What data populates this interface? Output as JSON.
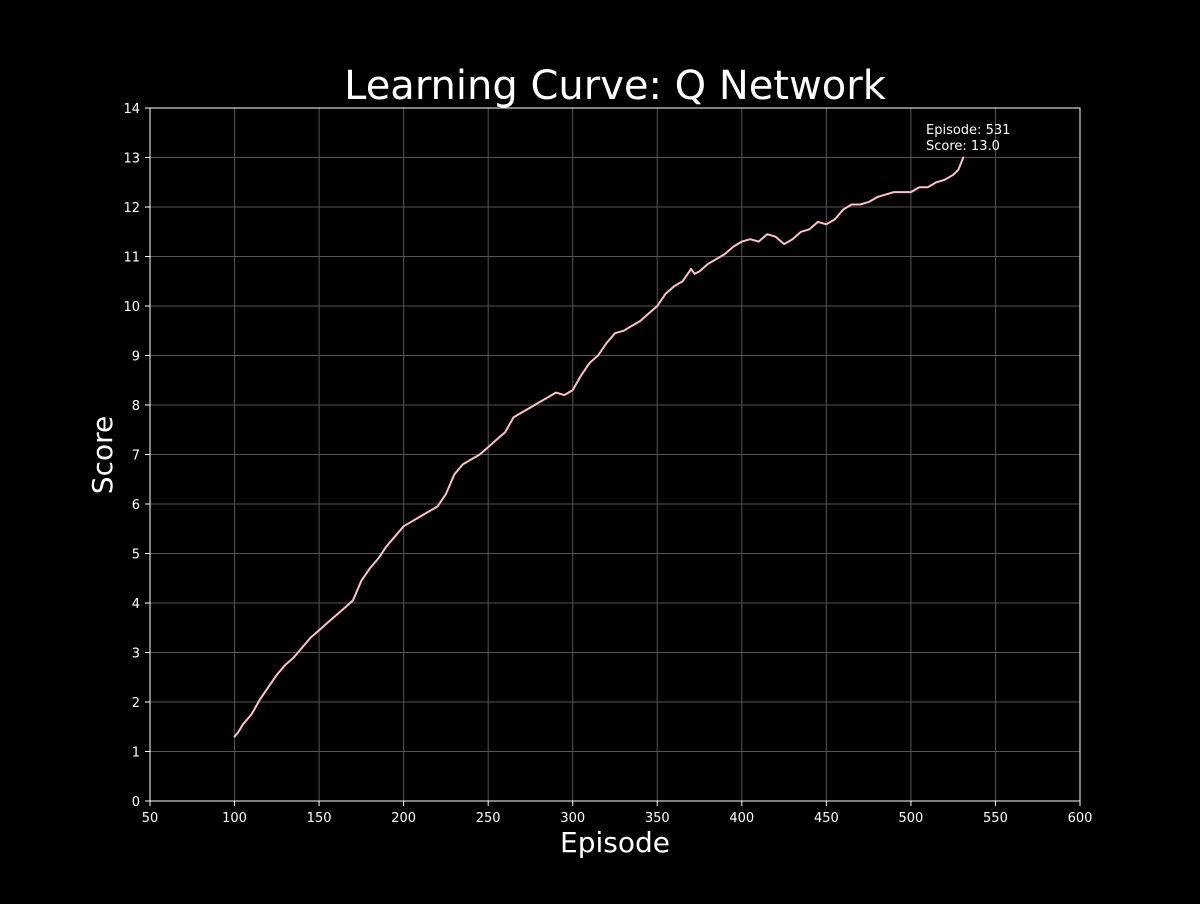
{
  "colors": {
    "background": "#000000",
    "axes": "#ffffff",
    "grid": "#555555",
    "line": "#ffc0cb",
    "text": "#ffffff"
  },
  "chart_data": {
    "type": "line",
    "title": "Learning Curve: Q Network",
    "xlabel": "Episode",
    "ylabel": "Score",
    "xlim": [
      50,
      600
    ],
    "ylim": [
      0,
      14
    ],
    "xticks": [
      50,
      100,
      150,
      200,
      250,
      300,
      350,
      400,
      450,
      500,
      550,
      600
    ],
    "yticks": [
      0,
      1,
      2,
      3,
      4,
      5,
      6,
      7,
      8,
      9,
      10,
      11,
      12,
      13,
      14
    ],
    "grid": true,
    "annotation": {
      "episode_text": "Episode: 531",
      "score_text": "Score: 13.0"
    },
    "series": [
      {
        "x": [
          100,
          102,
          105,
          110,
          115,
          120,
          125,
          130,
          135,
          140,
          145,
          150,
          155,
          160,
          165,
          170,
          175,
          180,
          185,
          190,
          195,
          200,
          205,
          210,
          215,
          220,
          225,
          230,
          235,
          240,
          245,
          250,
          255,
          260,
          265,
          270,
          275,
          280,
          285,
          290,
          295,
          300,
          305,
          310,
          315,
          320,
          325,
          330,
          335,
          340,
          345,
          350,
          355,
          360,
          365,
          370,
          372,
          375,
          380,
          385,
          390,
          395,
          400,
          405,
          410,
          415,
          420,
          425,
          430,
          435,
          440,
          445,
          450,
          455,
          460,
          465,
          470,
          475,
          480,
          485,
          490,
          495,
          500,
          505,
          510,
          515,
          520,
          525,
          528,
          531
        ],
        "y": [
          1.3,
          1.38,
          1.55,
          1.75,
          2.05,
          2.3,
          2.55,
          2.75,
          2.9,
          3.1,
          3.3,
          3.45,
          3.6,
          3.75,
          3.9,
          4.05,
          4.45,
          4.7,
          4.9,
          5.15,
          5.35,
          5.55,
          5.65,
          5.75,
          5.85,
          5.95,
          6.2,
          6.6,
          6.8,
          6.9,
          7.0,
          7.15,
          7.3,
          7.45,
          7.75,
          7.85,
          7.95,
          8.05,
          8.15,
          8.25,
          8.2,
          8.3,
          8.6,
          8.85,
          9.0,
          9.25,
          9.45,
          9.5,
          9.6,
          9.7,
          9.85,
          10.0,
          10.25,
          10.4,
          10.5,
          10.75,
          10.65,
          10.7,
          10.85,
          10.95,
          11.05,
          11.2,
          11.3,
          11.35,
          11.3,
          11.45,
          11.4,
          11.25,
          11.35,
          11.5,
          11.55,
          11.7,
          11.65,
          11.75,
          11.95,
          12.05,
          12.05,
          12.1,
          12.2,
          12.25,
          12.3,
          12.3,
          12.3,
          12.4,
          12.4,
          12.5,
          12.55,
          12.65,
          12.75,
          13.0
        ]
      }
    ]
  }
}
